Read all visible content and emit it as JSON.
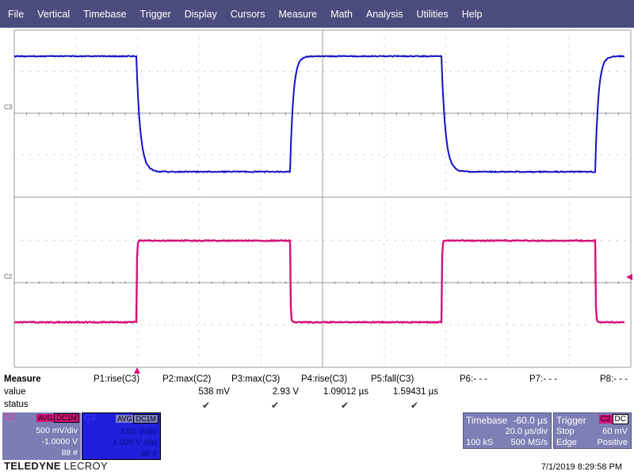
{
  "menu": [
    "File",
    "Vertical",
    "Timebase",
    "Trigger",
    "Display",
    "Cursors",
    "Measure",
    "Math",
    "Analysis",
    "Utilities",
    "Help"
  ],
  "colors": {
    "c3": "#1212c8",
    "c2": "#d4127a",
    "grid": "#9a9a9a",
    "menubar": "#4b4c7d"
  },
  "channels": {
    "c3_label": "C3",
    "c2_label": "C2"
  },
  "measure": {
    "header": "Measure",
    "row_value": "value",
    "row_status": "status",
    "params": [
      {
        "name": "P1:rise(C3)",
        "value": "",
        "status": ""
      },
      {
        "name": "P2:max(C2)",
        "value": "538 mV",
        "status": "✔"
      },
      {
        "name": "P3:max(C3)",
        "value": "2.93 V",
        "status": "✔"
      },
      {
        "name": "P4:rise(C3)",
        "value": "1.09012 µs",
        "status": "✔"
      },
      {
        "name": "P5:fall(C3)",
        "value": "1.59431 µs",
        "status": "✔"
      },
      {
        "name": "P6:- - -",
        "value": "",
        "status": ""
      },
      {
        "name": "P7:- - -",
        "value": "",
        "status": ""
      },
      {
        "name": "P8:- - -",
        "value": "",
        "status": ""
      }
    ]
  },
  "c2_box": {
    "tag": "C2",
    "flag1": "AVG",
    "flag2": "DC1M",
    "line1": "500 mV/div",
    "line2": "-1.0000 V",
    "line3": "88 #"
  },
  "c3_box": {
    "tag": "C3",
    "flag1": "AVG",
    "flag2": "DC1M",
    "line1": "2.00 V/div",
    "line2": "4.000 V ofst",
    "line3": "88 #"
  },
  "timebase": {
    "label": "Timebase",
    "delay": "-60.0 µs",
    "tdiv": "20.0 µs/div",
    "samples": "100 kS",
    "rate": "500 MS/s"
  },
  "trigger": {
    "label": "Trigger",
    "source": "C2",
    "coupling": "DC",
    "mode": "Stop",
    "level": "60 mV",
    "type": "Edge",
    "slope": "Positive"
  },
  "brand": {
    "main": "TELEDYNE",
    "sub": "LECROY"
  },
  "timestamp": "7/1/2019 8:29:58 PM"
}
